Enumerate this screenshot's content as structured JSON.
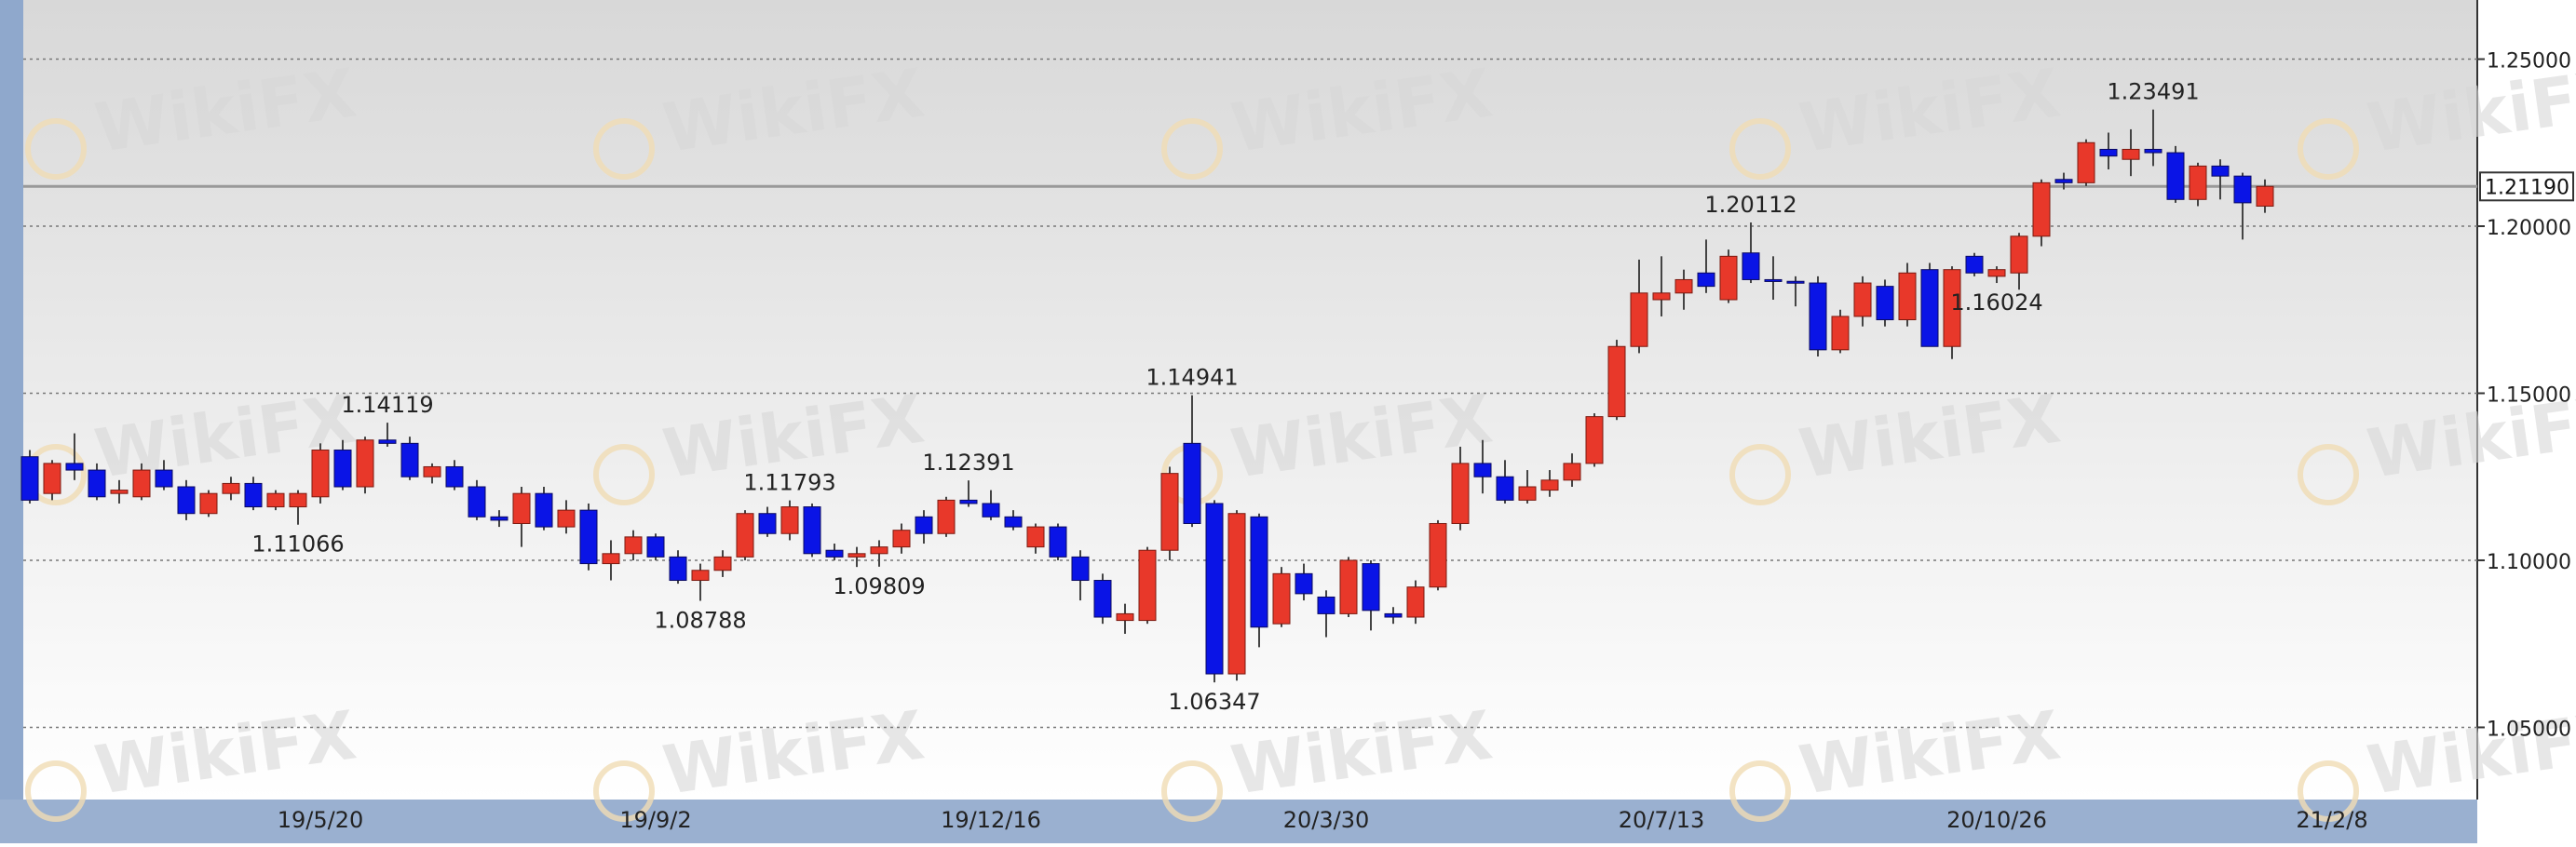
{
  "chart_data": {
    "type": "candlestick",
    "categories": [
      null,
      null,
      null,
      null,
      null,
      null,
      null,
      null,
      null,
      null,
      null,
      null,
      null,
      "19/5/20",
      null,
      null,
      null,
      null,
      null,
      null,
      null,
      null,
      null,
      null,
      null,
      null,
      null,
      null,
      "19/9/2",
      null,
      null,
      null,
      null,
      null,
      null,
      null,
      null,
      null,
      null,
      null,
      null,
      null,
      null,
      "19/12/16",
      null,
      null,
      null,
      null,
      null,
      null,
      null,
      null,
      null,
      null,
      null,
      null,
      null,
      null,
      "20/3/30",
      null,
      null,
      null,
      null,
      null,
      null,
      null,
      null,
      null,
      null,
      null,
      null,
      null,
      null,
      "20/7/13",
      null,
      null,
      null,
      null,
      null,
      null,
      null,
      null,
      null,
      null,
      null,
      null,
      null,
      null,
      "20/10/26",
      null,
      null,
      null,
      null,
      null,
      null,
      null,
      null,
      null,
      null,
      null,
      null,
      null,
      null,
      "21/2/8"
    ],
    "open": [
      1.131,
      1.12,
      1.129,
      1.127,
      1.12,
      1.119,
      1.127,
      1.122,
      1.114,
      1.12,
      1.123,
      1.116,
      1.116,
      1.119,
      1.133,
      1.122,
      1.136,
      1.135,
      1.125,
      1.128,
      1.122,
      1.113,
      1.111,
      1.12,
      1.11,
      1.115,
      1.099,
      1.102,
      1.107,
      1.101,
      1.094,
      1.097,
      1.101,
      1.114,
      1.108,
      1.116,
      1.103,
      1.101,
      1.102,
      1.104,
      1.113,
      1.108,
      1.118,
      1.117,
      1.113,
      1.104,
      1.11,
      1.101,
      1.094,
      1.082,
      1.082,
      1.103,
      1.135,
      1.117,
      1.066,
      1.113,
      1.081,
      1.096,
      1.089,
      1.084,
      1.099,
      1.084,
      1.083,
      1.092,
      1.111,
      1.129,
      1.125,
      1.118,
      1.121,
      1.124,
      1.129,
      1.143,
      1.164,
      1.178,
      1.18,
      1.186,
      1.178,
      1.192,
      1.184,
      1.1835,
      1.183,
      1.163,
      1.173,
      1.182,
      1.172,
      1.187,
      1.164,
      1.191,
      1.185,
      1.186,
      1.197,
      1.214,
      1.213,
      1.223,
      1.22,
      1.223,
      1.222,
      1.208,
      1.218,
      1.215,
      1.206,
      null,
      null,
      null
    ],
    "high": [
      1.133,
      1.13,
      1.138,
      1.129,
      1.124,
      1.129,
      1.13,
      1.124,
      1.121,
      1.125,
      1.125,
      1.121,
      1.121,
      1.135,
      1.136,
      1.137,
      1.14119,
      1.137,
      1.129,
      1.13,
      1.124,
      1.115,
      1.122,
      1.122,
      1.118,
      1.117,
      1.106,
      1.109,
      1.108,
      1.103,
      1.099,
      1.103,
      1.115,
      1.116,
      1.11793,
      1.117,
      1.105,
      1.104,
      1.106,
      1.111,
      1.115,
      1.119,
      1.12391,
      1.121,
      1.115,
      1.111,
      1.111,
      1.103,
      1.096,
      1.087,
      1.104,
      1.128,
      1.14941,
      1.118,
      1.115,
      1.114,
      1.098,
      1.099,
      1.091,
      1.101,
      1.1,
      1.086,
      1.094,
      1.112,
      1.134,
      1.136,
      1.13,
      1.127,
      1.127,
      1.132,
      1.144,
      1.166,
      1.19,
      1.191,
      1.187,
      1.196,
      1.193,
      1.20112,
      1.191,
      1.185,
      1.185,
      1.175,
      1.185,
      1.184,
      1.189,
      1.189,
      1.188,
      1.192,
      1.188,
      1.198,
      1.214,
      1.216,
      1.226,
      1.228,
      1.229,
      1.23491,
      1.224,
      1.219,
      1.22,
      1.216,
      1.214,
      null,
      null,
      null
    ],
    "low": [
      1.117,
      1.118,
      1.124,
      1.118,
      1.117,
      1.118,
      1.121,
      1.112,
      1.113,
      1.118,
      1.115,
      1.115,
      1.11066,
      1.117,
      1.121,
      1.12,
      1.134,
      1.124,
      1.123,
      1.121,
      1.112,
      1.11,
      1.104,
      1.109,
      1.108,
      1.097,
      1.094,
      1.1,
      1.1,
      1.093,
      1.08788,
      1.095,
      1.1,
      1.107,
      1.106,
      1.101,
      1.1,
      1.098,
      1.09809,
      1.102,
      1.105,
      1.107,
      1.116,
      1.112,
      1.109,
      1.102,
      1.1,
      1.088,
      1.081,
      1.078,
      1.081,
      1.1,
      1.11,
      1.06347,
      1.064,
      1.074,
      1.08,
      1.088,
      1.077,
      1.083,
      1.079,
      1.081,
      1.081,
      1.091,
      1.109,
      1.12,
      1.117,
      1.117,
      1.119,
      1.122,
      1.128,
      1.142,
      1.162,
      1.173,
      1.175,
      1.18,
      1.177,
      1.183,
      1.178,
      1.176,
      1.161,
      1.162,
      1.17,
      1.17,
      1.17,
      1.164,
      1.16024,
      1.185,
      1.183,
      1.181,
      1.194,
      1.211,
      1.212,
      1.217,
      1.215,
      1.218,
      1.207,
      1.206,
      1.208,
      1.196,
      1.204,
      null,
      null,
      null
    ],
    "close": [
      1.118,
      1.129,
      1.127,
      1.119,
      1.121,
      1.127,
      1.122,
      1.114,
      1.12,
      1.123,
      1.116,
      1.12,
      1.12,
      1.133,
      1.122,
      1.136,
      1.135,
      1.125,
      1.128,
      1.122,
      1.113,
      1.112,
      1.12,
      1.11,
      1.115,
      1.099,
      1.102,
      1.107,
      1.101,
      1.094,
      1.097,
      1.101,
      1.114,
      1.108,
      1.116,
      1.102,
      1.101,
      1.102,
      1.104,
      1.109,
      1.108,
      1.118,
      1.117,
      1.113,
      1.11,
      1.11,
      1.101,
      1.094,
      1.083,
      1.084,
      1.103,
      1.126,
      1.111,
      1.066,
      1.114,
      1.08,
      1.096,
      1.09,
      1.084,
      1.1,
      1.085,
      1.083,
      1.092,
      1.111,
      1.129,
      1.125,
      1.118,
      1.122,
      1.124,
      1.129,
      1.143,
      1.164,
      1.18,
      1.18,
      1.184,
      1.182,
      1.191,
      1.184,
      1.1835,
      1.183,
      1.163,
      1.173,
      1.183,
      1.172,
      1.186,
      1.164,
      1.187,
      1.186,
      1.187,
      1.197,
      1.213,
      1.213,
      1.225,
      1.221,
      1.223,
      1.222,
      1.208,
      1.218,
      1.215,
      1.207,
      1.2119,
      null,
      null,
      null
    ],
    "high_labels": [
      null,
      null,
      null,
      null,
      null,
      null,
      null,
      null,
      null,
      null,
      null,
      null,
      null,
      null,
      null,
      null,
      "1.14119",
      null,
      null,
      null,
      null,
      null,
      null,
      null,
      null,
      null,
      null,
      null,
      null,
      null,
      null,
      null,
      null,
      null,
      "1.11793",
      null,
      null,
      null,
      null,
      null,
      null,
      null,
      "1.12391",
      null,
      null,
      null,
      null,
      null,
      null,
      null,
      null,
      null,
      "1.14941",
      null,
      null,
      null,
      null,
      null,
      null,
      null,
      null,
      null,
      null,
      null,
      null,
      null,
      null,
      null,
      null,
      null,
      null,
      null,
      null,
      null,
      null,
      null,
      null,
      "1.20112",
      null,
      null,
      null,
      null,
      null,
      null,
      null,
      null,
      null,
      null,
      null,
      null,
      null,
      null,
      null,
      null,
      null,
      "1.23491",
      null,
      null,
      null,
      null,
      null,
      null,
      null,
      null
    ],
    "low_labels": [
      null,
      null,
      null,
      null,
      null,
      null,
      null,
      null,
      null,
      null,
      null,
      null,
      "1.11066",
      null,
      null,
      null,
      null,
      null,
      null,
      null,
      null,
      null,
      null,
      null,
      null,
      null,
      null,
      null,
      null,
      null,
      "1.08788",
      null,
      null,
      null,
      null,
      null,
      null,
      null,
      "1.09809",
      null,
      null,
      null,
      null,
      null,
      null,
      null,
      null,
      null,
      null,
      null,
      null,
      null,
      null,
      "1.06347",
      null,
      null,
      null,
      null,
      null,
      null,
      null,
      null,
      null,
      null,
      null,
      null,
      null,
      null,
      null,
      null,
      null,
      null,
      null,
      null,
      null,
      null,
      null,
      null,
      null,
      null,
      null,
      null,
      null,
      null,
      null,
      null,
      null,
      null,
      "1.16024",
      null,
      null,
      null,
      null,
      null,
      null,
      null,
      null,
      null,
      null,
      null,
      null,
      null,
      null,
      null,
      null,
      null
    ],
    "up_color": "#e8382a",
    "down_color": "#0a14e6",
    "ylim": [
      1.0284,
      1.2677
    ],
    "yticks": [
      {
        "value": 1.05,
        "label": "1.05000"
      },
      {
        "value": 1.1,
        "label": "1.10000"
      },
      {
        "value": 1.15,
        "label": "1.15000"
      },
      {
        "value": 1.2,
        "label": "1.20000"
      },
      {
        "value": 1.25,
        "label": "1.25000"
      }
    ],
    "grid": true,
    "last": {
      "value": 1.2119,
      "label": "1.21190"
    },
    "watermark": "WikiFX"
  }
}
